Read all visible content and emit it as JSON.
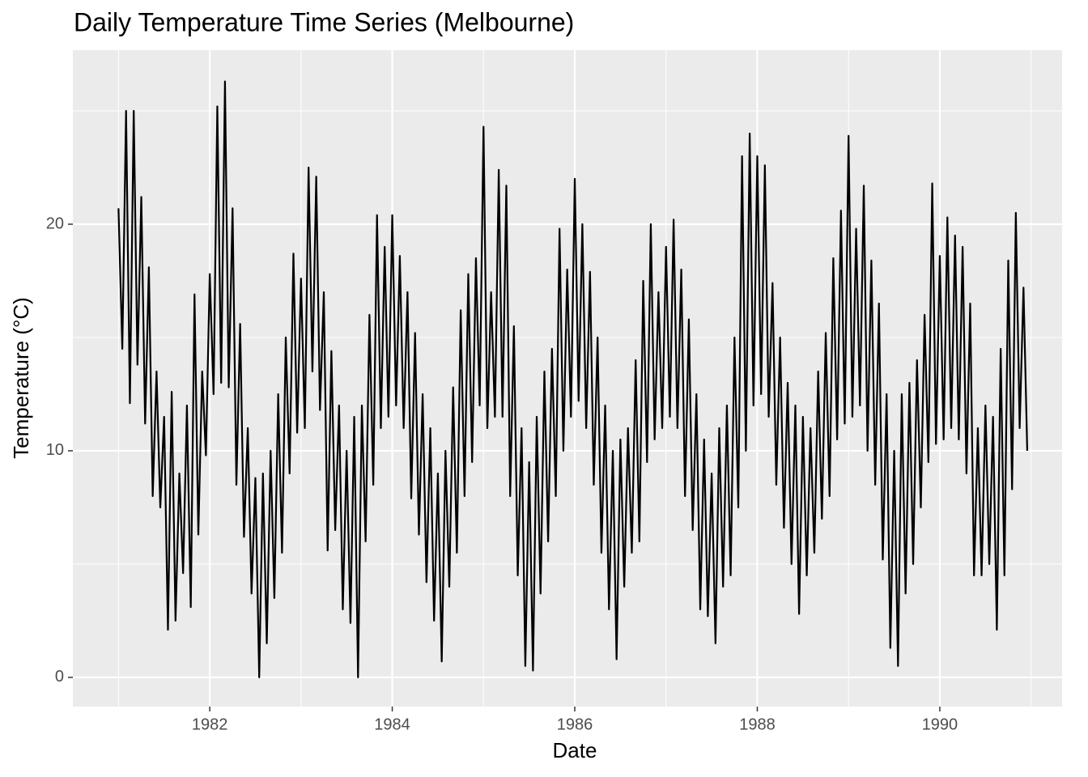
{
  "chart_data": {
    "type": "line",
    "title": "Daily Temperature Time Series (Melbourne)",
    "x_label": "Date",
    "y_label": "Temperature (°C)",
    "xlim": [
      1980.5,
      1991.34
    ],
    "ylim": [
      -1.29,
      27.68
    ],
    "xticks": [
      1982,
      1984,
      1986,
      1988,
      1990
    ],
    "yticks": [
      0,
      10,
      20
    ],
    "grid": true,
    "color": "#000000",
    "x": [
      1981.0,
      1981.042,
      1981.083,
      1981.125,
      1981.167,
      1981.208,
      1981.25,
      1981.292,
      1981.333,
      1981.375,
      1981.417,
      1981.458,
      1981.5,
      1981.542,
      1981.583,
      1981.625,
      1981.667,
      1981.708,
      1981.75,
      1981.792,
      1981.833,
      1981.875,
      1981.917,
      1981.958,
      1982.0,
      1982.042,
      1982.083,
      1982.125,
      1982.167,
      1982.208,
      1982.25,
      1982.292,
      1982.333,
      1982.375,
      1982.417,
      1982.458,
      1982.5,
      1982.542,
      1982.583,
      1982.625,
      1982.667,
      1982.708,
      1982.75,
      1982.792,
      1982.833,
      1982.875,
      1982.917,
      1982.958,
      1983.0,
      1983.042,
      1983.083,
      1983.125,
      1983.167,
      1983.208,
      1983.25,
      1983.292,
      1983.333,
      1983.375,
      1983.417,
      1983.458,
      1983.5,
      1983.542,
      1983.583,
      1983.625,
      1983.667,
      1983.708,
      1983.75,
      1983.792,
      1983.833,
      1983.875,
      1983.917,
      1983.958,
      1984.0,
      1984.042,
      1984.083,
      1984.125,
      1984.167,
      1984.208,
      1984.25,
      1984.292,
      1984.333,
      1984.375,
      1984.417,
      1984.458,
      1984.5,
      1984.542,
      1984.583,
      1984.625,
      1984.667,
      1984.708,
      1984.75,
      1984.792,
      1984.833,
      1984.875,
      1984.917,
      1984.958,
      1985.0,
      1985.042,
      1985.083,
      1985.125,
      1985.167,
      1985.208,
      1985.25,
      1985.292,
      1985.333,
      1985.375,
      1985.417,
      1985.458,
      1985.5,
      1985.542,
      1985.583,
      1985.625,
      1985.667,
      1985.708,
      1985.75,
      1985.792,
      1985.833,
      1985.875,
      1985.917,
      1985.958,
      1986.0,
      1986.042,
      1986.083,
      1986.125,
      1986.167,
      1986.208,
      1986.25,
      1986.292,
      1986.333,
      1986.375,
      1986.417,
      1986.458,
      1986.5,
      1986.542,
      1986.583,
      1986.625,
      1986.667,
      1986.708,
      1986.75,
      1986.792,
      1986.833,
      1986.875,
      1986.917,
      1986.958,
      1987.0,
      1987.042,
      1987.083,
      1987.125,
      1987.167,
      1987.208,
      1987.25,
      1987.292,
      1987.333,
      1987.375,
      1987.417,
      1987.458,
      1987.5,
      1987.542,
      1987.583,
      1987.625,
      1987.667,
      1987.708,
      1987.75,
      1987.792,
      1987.833,
      1987.875,
      1987.917,
      1987.958,
      1988.0,
      1988.042,
      1988.083,
      1988.125,
      1988.167,
      1988.208,
      1988.25,
      1988.292,
      1988.333,
      1988.375,
      1988.417,
      1988.458,
      1988.5,
      1988.542,
      1988.583,
      1988.625,
      1988.667,
      1988.708,
      1988.75,
      1988.792,
      1988.833,
      1988.875,
      1988.917,
      1988.958,
      1989.0,
      1989.042,
      1989.083,
      1989.125,
      1989.167,
      1989.208,
      1989.25,
      1989.292,
      1989.333,
      1989.375,
      1989.417,
      1989.458,
      1989.5,
      1989.542,
      1989.583,
      1989.625,
      1989.667,
      1989.708,
      1989.75,
      1989.792,
      1989.833,
      1989.875,
      1989.917,
      1989.958,
      1990.0,
      1990.042,
      1990.083,
      1990.125,
      1990.167,
      1990.208,
      1990.25,
      1990.292,
      1990.333,
      1990.375,
      1990.417,
      1990.458,
      1990.5,
      1990.542,
      1990.583,
      1990.625,
      1990.667,
      1990.708,
      1990.75,
      1990.792,
      1990.833,
      1990.875,
      1990.917,
      1990.958
    ],
    "values": [
      20.7,
      14.5,
      25.0,
      12.1,
      25.0,
      13.8,
      21.2,
      11.2,
      18.1,
      8.0,
      13.5,
      7.5,
      11.5,
      2.1,
      12.6,
      2.5,
      9.0,
      4.6,
      12.0,
      3.1,
      16.9,
      6.3,
      13.5,
      9.8,
      17.8,
      12.5,
      25.2,
      13.0,
      26.3,
      12.8,
      20.7,
      8.5,
      15.6,
      6.2,
      11.0,
      3.7,
      8.8,
      0.0,
      9.0,
      1.5,
      10.0,
      3.5,
      12.5,
      5.5,
      15.0,
      9.0,
      18.7,
      10.8,
      17.6,
      11.0,
      22.5,
      13.5,
      22.1,
      11.8,
      17.0,
      5.6,
      14.4,
      6.5,
      12.0,
      3.0,
      10.0,
      2.4,
      11.5,
      0.0,
      12.0,
      6.0,
      16.0,
      8.5,
      20.4,
      11.0,
      19.0,
      11.5,
      20.4,
      12.0,
      18.6,
      11.0,
      17.0,
      7.9,
      15.2,
      6.3,
      12.5,
      4.2,
      11.0,
      2.5,
      9.0,
      0.7,
      10.0,
      4.0,
      12.8,
      5.5,
      16.2,
      8.0,
      17.8,
      9.5,
      18.5,
      12.0,
      24.3,
      11.0,
      17.0,
      11.5,
      22.4,
      11.5,
      21.7,
      8.0,
      15.5,
      4.5,
      11.0,
      0.5,
      9.5,
      0.3,
      11.5,
      3.7,
      13.5,
      6.0,
      14.5,
      8.0,
      19.8,
      10.0,
      18.0,
      11.5,
      22.0,
      12.2,
      20.0,
      11.0,
      17.9,
      8.5,
      15.0,
      5.5,
      12.0,
      3.0,
      10.0,
      0.8,
      10.5,
      4.0,
      11.0,
      5.5,
      14.0,
      6.0,
      17.5,
      9.5,
      20.0,
      10.5,
      17.0,
      11.0,
      19.0,
      11.5,
      20.2,
      11.0,
      18.0,
      8.0,
      15.8,
      6.5,
      12.5,
      3.0,
      10.5,
      2.7,
      9.0,
      1.5,
      11.0,
      4.0,
      12.0,
      4.5,
      15.0,
      7.5,
      23.0,
      10.0,
      24.0,
      12.0,
      23.0,
      12.5,
      22.6,
      11.5,
      17.4,
      8.5,
      15.0,
      6.6,
      13.0,
      5.0,
      12.0,
      2.8,
      11.5,
      4.5,
      11.0,
      5.5,
      13.5,
      7.0,
      15.2,
      8.0,
      18.5,
      10.5,
      20.6,
      11.2,
      23.9,
      11.5,
      19.8,
      12.0,
      21.7,
      10.0,
      18.4,
      8.5,
      16.5,
      5.2,
      12.5,
      1.3,
      10.0,
      0.5,
      12.5,
      3.7,
      13.0,
      5.0,
      14.0,
      7.5,
      16.0,
      9.5,
      21.8,
      10.3,
      18.6,
      10.5,
      20.3,
      11.0,
      19.5,
      10.5,
      19.0,
      9.0,
      16.5,
      4.5,
      11.0,
      4.5,
      12.0,
      5.0,
      11.5,
      2.1,
      14.5,
      4.5,
      18.4,
      8.3,
      20.5,
      11.0,
      17.2,
      10.0
    ]
  }
}
